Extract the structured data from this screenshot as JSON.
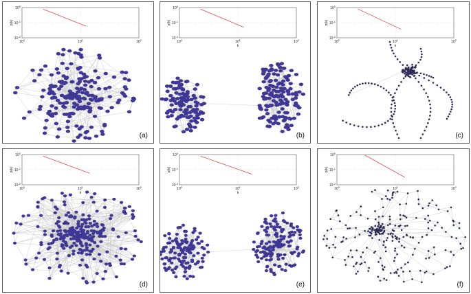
{
  "colors": {
    "node": "#3f3796",
    "node_dark": "#2a2a55",
    "edge": "#c8c8c8",
    "fit_line": "#e24a4a",
    "axis": "#555555",
    "frame": "#555555"
  },
  "panels": [
    {
      "id": "a",
      "label": "(a)",
      "layout": "single-cluster",
      "node_style": "large",
      "inset": {
        "xticks": [
          "10^0",
          "10^1",
          "10^2"
        ],
        "yticks": [
          "10^0",
          "10^-1",
          "10^-2"
        ],
        "ylabel": "p(k)",
        "xlabel": ""
      }
    },
    {
      "id": "b",
      "label": "(b)",
      "layout": "two-clusters",
      "node_style": "large",
      "inset": {
        "xticks": [
          "10^0",
          "10^1",
          "10^2"
        ],
        "yticks": [
          "10^0",
          "10^-1",
          "10^-2"
        ],
        "ylabel": "p(k)",
        "xlabel": "k"
      }
    },
    {
      "id": "c",
      "label": "(c)",
      "layout": "hub-loops",
      "node_style": "small",
      "inset": {
        "xticks": [
          "10^0",
          "10^1",
          "10^2"
        ],
        "yticks": [
          "10^0",
          "10^-1",
          "10^-2"
        ],
        "ylabel": "p(k)",
        "xlabel": "k"
      }
    },
    {
      "id": "d",
      "label": "(d)",
      "layout": "dense-core",
      "node_style": "medium",
      "inset": {
        "xticks": [
          "10^0",
          "10^1",
          "10^2"
        ],
        "yticks": [
          "10^0",
          "10^-1",
          "10^-2"
        ],
        "ylabel": "p(k)",
        "xlabel": "k"
      }
    },
    {
      "id": "e",
      "label": "(e)",
      "layout": "two-clusters",
      "node_style": "medium",
      "inset": {
        "xticks": [
          "10^0",
          "10^1",
          "10^2"
        ],
        "yticks": [
          "10^0",
          "10^-1",
          "10^-2"
        ],
        "ylabel": "p(k)",
        "xlabel": "k"
      }
    },
    {
      "id": "f",
      "label": "(f)",
      "layout": "core-periphery-wide",
      "node_style": "small",
      "inset": {
        "xticks": [
          "10^0",
          "10^1",
          "10^2"
        ],
        "yticks": [
          "10^0",
          "10^-1",
          "10^-2"
        ],
        "ylabel": "p(k)",
        "xlabel": "k"
      }
    }
  ]
}
